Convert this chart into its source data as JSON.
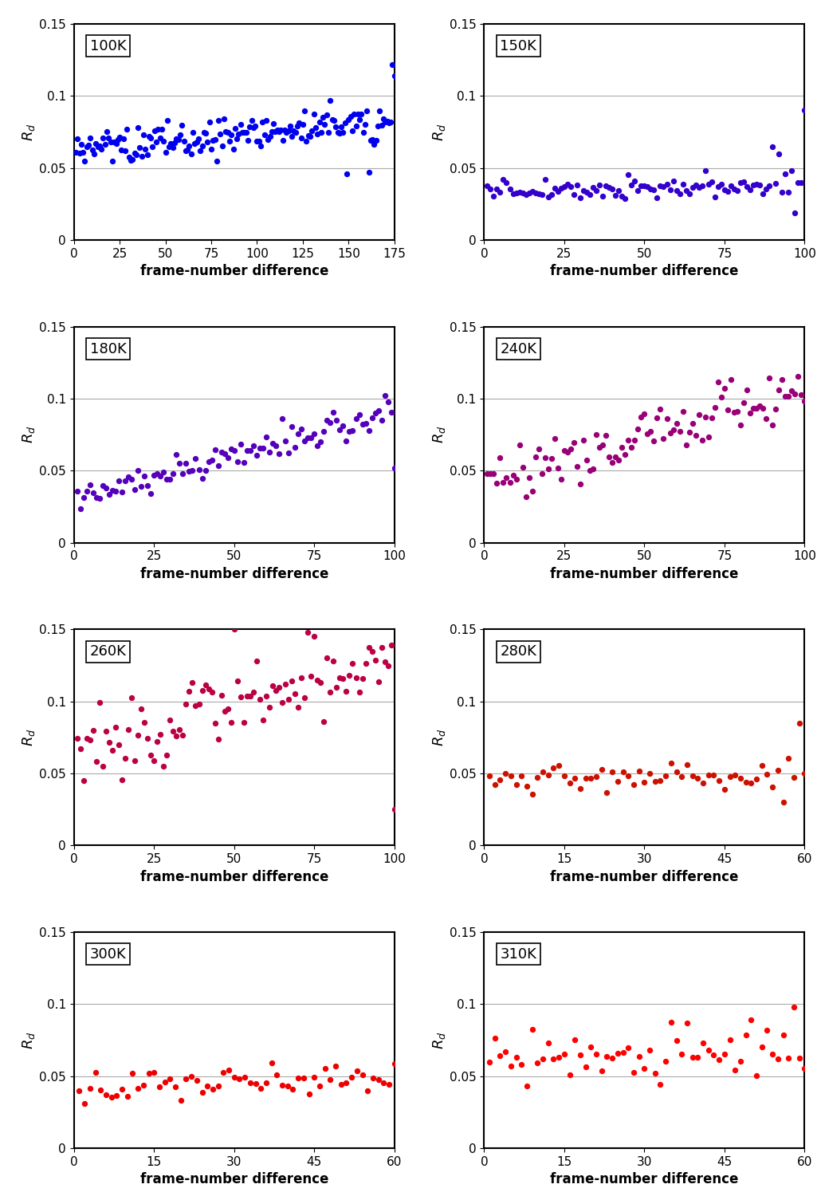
{
  "panels": [
    {
      "label": "100K",
      "color": "#0000EE",
      "xlim": [
        0,
        175
      ],
      "xticks": [
        0,
        25,
        50,
        75,
        100,
        125,
        150,
        175
      ],
      "n_points": 175,
      "seed": 1,
      "base": 0.062,
      "trend": 0.00012,
      "noise": 0.006
    },
    {
      "label": "150K",
      "color": "#3300CC",
      "xlim": [
        0,
        100
      ],
      "xticks": [
        0,
        25,
        50,
        75,
        100
      ],
      "n_points": 100,
      "seed": 2,
      "base": 0.034,
      "trend": 3e-05,
      "noise": 0.003
    },
    {
      "label": "180K",
      "color": "#5500BB",
      "xlim": [
        0,
        100
      ],
      "xticks": [
        0,
        25,
        50,
        75,
        100
      ],
      "n_points": 100,
      "seed": 3,
      "base": 0.03,
      "trend": 0.00062,
      "noise": 0.006
    },
    {
      "label": "240K",
      "color": "#990077",
      "xlim": [
        0,
        100
      ],
      "xticks": [
        0,
        25,
        50,
        75,
        100
      ],
      "n_points": 100,
      "seed": 4,
      "base": 0.04,
      "trend": 0.00068,
      "noise": 0.01
    },
    {
      "label": "260K",
      "color": "#BB0044",
      "xlim": [
        0,
        100
      ],
      "xticks": [
        0,
        25,
        50,
        75,
        100
      ],
      "n_points": 100,
      "seed": 5,
      "base": 0.064,
      "trend": 0.00065,
      "noise": 0.012
    },
    {
      "label": "280K",
      "color": "#CC1100",
      "xlim": [
        0,
        60
      ],
      "xticks": [
        0,
        15,
        30,
        45,
        60
      ],
      "n_points": 60,
      "seed": 6,
      "base": 0.046,
      "trend": 5e-05,
      "noise": 0.005
    },
    {
      "label": "300K",
      "color": "#EE0000",
      "xlim": [
        0,
        60
      ],
      "xticks": [
        0,
        15,
        30,
        45,
        60
      ],
      "n_points": 60,
      "seed": 7,
      "base": 0.042,
      "trend": 0.0001,
      "noise": 0.006
    },
    {
      "label": "310K",
      "color": "#FF0000",
      "xlim": [
        0,
        60
      ],
      "xticks": [
        0,
        15,
        30,
        45,
        60
      ],
      "n_points": 60,
      "seed": 8,
      "base": 0.059,
      "trend": 0.00015,
      "noise": 0.009
    }
  ],
  "ylim": [
    0,
    0.15
  ],
  "yticks": [
    0,
    0.05,
    0.1,
    0.15
  ],
  "ytick_labels": [
    "0",
    "0.05",
    "0.1",
    "0.15"
  ],
  "ylabel": "$\\mathit{R}_d$",
  "xlabel": "frame-number difference",
  "marker_size": 28,
  "background_color": "#FFFFFF",
  "grid_color": "#AAAAAA",
  "label_fontsize": 12,
  "tick_fontsize": 11,
  "panel_label_fontsize": 13
}
